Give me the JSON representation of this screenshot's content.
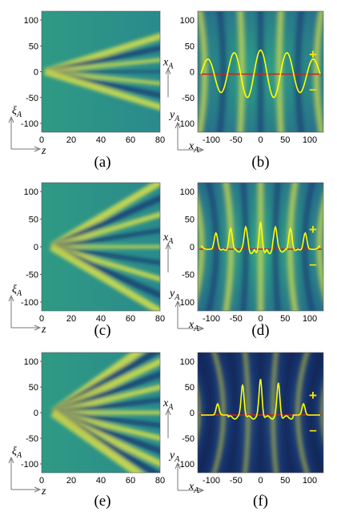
{
  "figure": {
    "panels": [
      {
        "caption": "(a)",
        "kind": "xi-z"
      },
      {
        "caption": "(b)",
        "kind": "x-y",
        "sign_plus": "+",
        "sign_minus": "–"
      },
      {
        "caption": "(c)",
        "kind": "xi-z"
      },
      {
        "caption": "(d)",
        "kind": "x-y",
        "sign_plus": "+",
        "sign_minus": "–"
      },
      {
        "caption": "(e)",
        "kind": "xi-z"
      },
      {
        "caption": "(f)",
        "kind": "x-y",
        "sign_plus": "+",
        "sign_minus": "–"
      }
    ],
    "left_axes": {
      "y_ticks": [
        "100",
        "50",
        "0",
        "-50",
        "-100"
      ],
      "x_ticks": [
        "0",
        "20",
        "40",
        "60",
        "80"
      ],
      "y_label": "ξ",
      "y_label_sub": "A",
      "x_label": "z"
    },
    "right_axes": {
      "y_ticks": [
        "100",
        "50",
        "0",
        "-50",
        "-100"
      ],
      "x_ticks": [
        "-100",
        "-50",
        "0",
        "50",
        "100"
      ],
      "y_label": "y",
      "y_label_sub": "A",
      "x_label": "x",
      "x_label_sub": "A",
      "inner_arrow_label": "x",
      "inner_arrow_sub": "A"
    },
    "colors": {
      "background_field": "#2e8c87",
      "bright_band": "#d8e04a",
      "dark_band": "#1a3f73",
      "profile_line": "#ffff00",
      "zero_line": "#d0201a"
    }
  }
}
